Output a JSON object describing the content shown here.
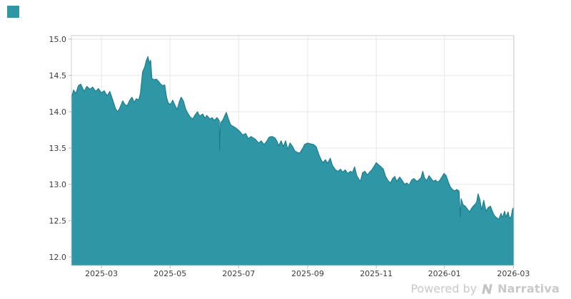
{
  "page": {
    "background": "#ffffff"
  },
  "branding": {
    "logo_color": "#2E96A5",
    "watermark_prefix": "Powered by",
    "watermark_brand": "Narrativa",
    "watermark_text_color": "#c9c9c9",
    "watermark_logo_color": "#c4c4c4"
  },
  "chart_data": {
    "type": "area",
    "title": "",
    "xlabel": "",
    "ylabel": "",
    "x_range": [
      "2025-02",
      "2026-03"
    ],
    "ylim": [
      11.9,
      15.05
    ],
    "grid": true,
    "legend": false,
    "fill_color": "#2E96A5",
    "line_color": "#1F7E8E",
    "grid_color": "#e7e7e7",
    "spine_color": "#cfcfcf",
    "tick_color": "#bdbdbd",
    "tick_label_color": "#3b3b3b",
    "x_ticks": [
      {
        "label": "2025-03",
        "t": 0.068
      },
      {
        "label": "2025-05",
        "t": 0.223
      },
      {
        "label": "2025-07",
        "t": 0.378
      },
      {
        "label": "2025-09",
        "t": 0.534
      },
      {
        "label": "2025-11",
        "t": 0.689
      },
      {
        "label": "2026-01",
        "t": 0.843
      },
      {
        "label": "2026-03",
        "t": 0.999
      }
    ],
    "y_ticks": [
      {
        "label": "15.0",
        "v": 15.0
      },
      {
        "label": "14.5",
        "v": 14.5
      },
      {
        "label": "14.0",
        "v": 14.0
      },
      {
        "label": "13.5",
        "v": 13.5
      },
      {
        "label": "13.0",
        "v": 13.0
      },
      {
        "label": "12.5",
        "v": 12.5
      },
      {
        "label": "12.0",
        "v": 12.0
      }
    ],
    "points": [
      [
        0.0,
        14.19
      ],
      [
        0.005,
        14.3
      ],
      [
        0.01,
        14.25
      ],
      [
        0.016,
        14.36
      ],
      [
        0.021,
        14.38
      ],
      [
        0.029,
        14.28
      ],
      [
        0.035,
        14.35
      ],
      [
        0.042,
        14.31
      ],
      [
        0.048,
        14.34
      ],
      [
        0.055,
        14.28
      ],
      [
        0.061,
        14.32
      ],
      [
        0.068,
        14.26
      ],
      [
        0.074,
        14.29
      ],
      [
        0.081,
        14.22
      ],
      [
        0.087,
        14.28
      ],
      [
        0.094,
        14.15
      ],
      [
        0.1,
        14.04
      ],
      [
        0.105,
        14.0
      ],
      [
        0.11,
        14.06
      ],
      [
        0.116,
        14.15
      ],
      [
        0.121,
        14.1
      ],
      [
        0.126,
        14.08
      ],
      [
        0.132,
        14.16
      ],
      [
        0.137,
        14.2
      ],
      [
        0.142,
        14.13
      ],
      [
        0.147,
        14.18
      ],
      [
        0.152,
        14.16
      ],
      [
        0.156,
        14.25
      ],
      [
        0.161,
        14.55
      ],
      [
        0.166,
        14.62
      ],
      [
        0.169,
        14.7
      ],
      [
        0.173,
        14.76
      ],
      [
        0.176,
        14.67
      ],
      [
        0.179,
        14.71
      ],
      [
        0.182,
        14.46
      ],
      [
        0.187,
        14.44
      ],
      [
        0.192,
        14.45
      ],
      [
        0.197,
        14.42
      ],
      [
        0.202,
        14.38
      ],
      [
        0.206,
        14.36
      ],
      [
        0.211,
        14.37
      ],
      [
        0.215,
        14.2
      ],
      [
        0.219,
        14.12
      ],
      [
        0.224,
        14.1
      ],
      [
        0.229,
        14.16
      ],
      [
        0.234,
        14.09
      ],
      [
        0.239,
        14.03
      ],
      [
        0.244,
        14.14
      ],
      [
        0.248,
        14.2
      ],
      [
        0.253,
        14.15
      ],
      [
        0.258,
        14.04
      ],
      [
        0.263,
        13.98
      ],
      [
        0.268,
        13.93
      ],
      [
        0.274,
        13.9
      ],
      [
        0.279,
        13.95
      ],
      [
        0.285,
        14.0
      ],
      [
        0.29,
        13.94
      ],
      [
        0.297,
        13.97
      ],
      [
        0.302,
        13.91
      ],
      [
        0.306,
        13.95
      ],
      [
        0.313,
        13.9
      ],
      [
        0.318,
        13.92
      ],
      [
        0.323,
        13.88
      ],
      [
        0.329,
        13.92
      ],
      [
        0.334,
        13.88
      ],
      [
        0.335,
        13.47
      ],
      [
        0.337,
        13.85
      ],
      [
        0.342,
        13.88
      ],
      [
        0.347,
        13.95
      ],
      [
        0.35,
        13.99
      ],
      [
        0.355,
        13.9
      ],
      [
        0.36,
        13.82
      ],
      [
        0.365,
        13.8
      ],
      [
        0.371,
        13.78
      ],
      [
        0.377,
        13.75
      ],
      [
        0.382,
        13.72
      ],
      [
        0.387,
        13.68
      ],
      [
        0.394,
        13.7
      ],
      [
        0.4,
        13.63
      ],
      [
        0.406,
        13.66
      ],
      [
        0.411,
        13.64
      ],
      [
        0.416,
        13.62
      ],
      [
        0.423,
        13.57
      ],
      [
        0.429,
        13.6
      ],
      [
        0.435,
        13.55
      ],
      [
        0.44,
        13.58
      ],
      [
        0.447,
        13.65
      ],
      [
        0.453,
        13.66
      ],
      [
        0.46,
        13.64
      ],
      [
        0.465,
        13.59
      ],
      [
        0.468,
        13.53
      ],
      [
        0.474,
        13.6
      ],
      [
        0.479,
        13.52
      ],
      [
        0.484,
        13.6
      ],
      [
        0.489,
        13.48
      ],
      [
        0.494,
        13.57
      ],
      [
        0.5,
        13.52
      ],
      [
        0.505,
        13.46
      ],
      [
        0.511,
        13.44
      ],
      [
        0.516,
        13.43
      ],
      [
        0.523,
        13.5
      ],
      [
        0.527,
        13.55
      ],
      [
        0.534,
        13.57
      ],
      [
        0.54,
        13.56
      ],
      [
        0.547,
        13.55
      ],
      [
        0.553,
        13.52
      ],
      [
        0.56,
        13.4
      ],
      [
        0.565,
        13.33
      ],
      [
        0.569,
        13.3
      ],
      [
        0.574,
        13.34
      ],
      [
        0.579,
        13.29
      ],
      [
        0.585,
        13.36
      ],
      [
        0.59,
        13.26
      ],
      [
        0.597,
        13.2
      ],
      [
        0.603,
        13.18
      ],
      [
        0.608,
        13.21
      ],
      [
        0.613,
        13.17
      ],
      [
        0.619,
        13.2
      ],
      [
        0.624,
        13.15
      ],
      [
        0.631,
        13.18
      ],
      [
        0.635,
        13.16
      ],
      [
        0.64,
        13.24
      ],
      [
        0.645,
        13.12
      ],
      [
        0.65,
        13.07
      ],
      [
        0.653,
        13.04
      ],
      [
        0.658,
        13.16
      ],
      [
        0.663,
        13.18
      ],
      [
        0.669,
        13.13
      ],
      [
        0.674,
        13.17
      ],
      [
        0.679,
        13.2
      ],
      [
        0.685,
        13.26
      ],
      [
        0.689,
        13.3
      ],
      [
        0.694,
        13.27
      ],
      [
        0.7,
        13.24
      ],
      [
        0.705,
        13.21
      ],
      [
        0.71,
        13.11
      ],
      [
        0.716,
        13.05
      ],
      [
        0.721,
        13.02
      ],
      [
        0.726,
        13.08
      ],
      [
        0.731,
        13.11
      ],
      [
        0.735,
        13.04
      ],
      [
        0.742,
        13.1
      ],
      [
        0.747,
        13.06
      ],
      [
        0.753,
        13.0
      ],
      [
        0.758,
        13.02
      ],
      [
        0.763,
        12.99
      ],
      [
        0.769,
        13.06
      ],
      [
        0.774,
        13.08
      ],
      [
        0.781,
        13.04
      ],
      [
        0.785,
        13.06
      ],
      [
        0.79,
        13.09
      ],
      [
        0.794,
        13.18
      ],
      [
        0.798,
        13.09
      ],
      [
        0.803,
        13.05
      ],
      [
        0.808,
        13.12
      ],
      [
        0.813,
        13.08
      ],
      [
        0.818,
        13.04
      ],
      [
        0.823,
        13.06
      ],
      [
        0.827,
        13.03
      ],
      [
        0.832,
        13.05
      ],
      [
        0.839,
        13.12
      ],
      [
        0.842,
        13.15
      ],
      [
        0.847,
        13.12
      ],
      [
        0.852,
        13.03
      ],
      [
        0.856,
        12.97
      ],
      [
        0.861,
        12.93
      ],
      [
        0.866,
        12.91
      ],
      [
        0.871,
        12.93
      ],
      [
        0.876,
        12.91
      ],
      [
        0.879,
        12.55
      ],
      [
        0.881,
        12.8
      ],
      [
        0.885,
        12.72
      ],
      [
        0.89,
        12.7
      ],
      [
        0.895,
        12.66
      ],
      [
        0.9,
        12.62
      ],
      [
        0.903,
        12.66
      ],
      [
        0.908,
        12.7
      ],
      [
        0.913,
        12.73
      ],
      [
        0.916,
        12.76
      ],
      [
        0.919,
        12.87
      ],
      [
        0.923,
        12.79
      ],
      [
        0.927,
        12.65
      ],
      [
        0.932,
        12.78
      ],
      [
        0.937,
        12.63
      ],
      [
        0.942,
        12.68
      ],
      [
        0.947,
        12.7
      ],
      [
        0.952,
        12.62
      ],
      [
        0.956,
        12.57
      ],
      [
        0.961,
        12.54
      ],
      [
        0.966,
        12.52
      ],
      [
        0.971,
        12.6
      ],
      [
        0.974,
        12.54
      ],
      [
        0.979,
        12.63
      ],
      [
        0.982,
        12.55
      ],
      [
        0.987,
        12.62
      ],
      [
        0.99,
        12.53
      ],
      [
        0.994,
        12.56
      ],
      [
        0.997,
        12.66
      ],
      [
        1.0,
        12.68
      ]
    ]
  }
}
